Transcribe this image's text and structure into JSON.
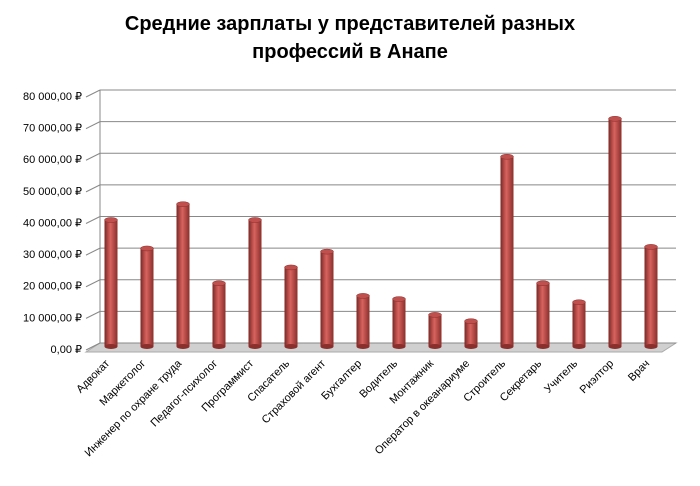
{
  "chart_data": {
    "type": "bar",
    "title": "Средние зарплаты у представителей разных профессий в Анапе",
    "categories": [
      "Адвокат",
      "Маркетолог",
      "Инженер по охране труда",
      "Педагог-психолог",
      "Программист",
      "Спасатель",
      "Страховой агент",
      "Бухгалтер",
      "Водитель",
      "Монтажник",
      "Оператор в океанариуме",
      "Строитель",
      "Секретарь",
      "Учитель",
      "Риэлтор",
      "Врач"
    ],
    "values": [
      40000,
      31000,
      45000,
      20000,
      40000,
      25000,
      30000,
      16000,
      15000,
      10000,
      8000,
      60000,
      20000,
      14000,
      72000,
      31500
    ],
    "color": "#c0504d",
    "ylim": [
      0,
      80000
    ],
    "yticks": [
      {
        "value": 0,
        "label": "0,00 ₽"
      },
      {
        "value": 10000,
        "label": "10 000,00 ₽"
      },
      {
        "value": 20000,
        "label": "20 000,00 ₽"
      },
      {
        "value": 30000,
        "label": "30 000,00 ₽"
      },
      {
        "value": 40000,
        "label": "40 000,00 ₽"
      },
      {
        "value": 50000,
        "label": "50 000,00 ₽"
      },
      {
        "value": 60000,
        "label": "60 000,00 ₽"
      },
      {
        "value": 70000,
        "label": "70 000,00 ₽"
      },
      {
        "value": 80000,
        "label": "80 000,00 ₽"
      }
    ],
    "grid": true
  }
}
